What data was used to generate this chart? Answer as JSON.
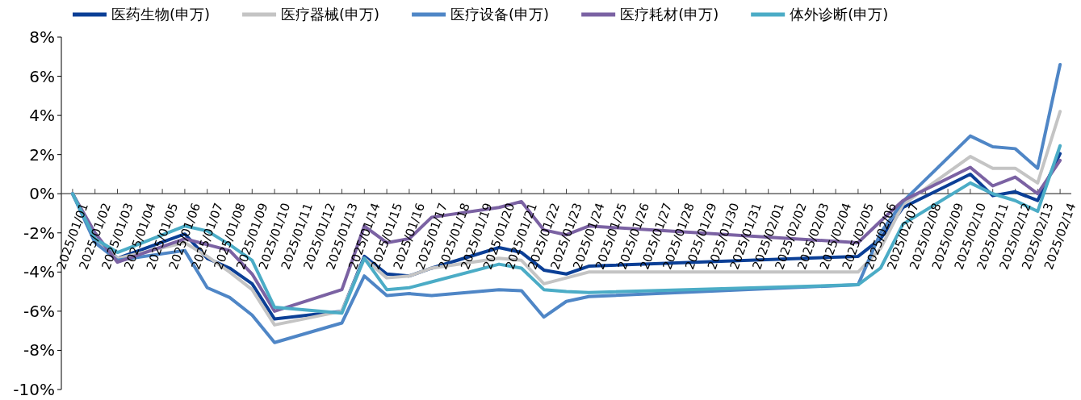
{
  "chart_data": {
    "type": "line",
    "x": [
      "2025-01-01",
      "2025-01-02",
      "2025-01-03",
      "2025-01-06",
      "2025-01-07",
      "2025-01-08",
      "2025-01-09",
      "2025-01-10",
      "2025-01-13",
      "2025-01-14",
      "2025-01-15",
      "2025-01-16",
      "2025-01-17",
      "2025-01-20",
      "2025-01-21",
      "2025-01-22",
      "2025-01-23",
      "2025-01-24",
      "2025-02-05",
      "2025-02-06",
      "2025-02-07",
      "2025-02-10",
      "2025-02-11",
      "2025-02-12",
      "2025-02-13",
      "2025-02-14"
    ],
    "series": [
      {
        "name": "医药生物(申万)",
        "color": "#0b3f96",
        "values": [
          0,
          -2.3,
          -3.3,
          -2.06,
          -3.3,
          -3.8,
          -4.6,
          -6.4,
          -6.0,
          -3.2,
          -4.1,
          -4.2,
          -3.8,
          -2.75,
          -3.0,
          -3.9,
          -4.1,
          -3.7,
          -3.2,
          -2.3,
          -0.7,
          1.0,
          -0.1,
          0.1,
          -0.35,
          2.05
        ]
      },
      {
        "name": "医疗器械(申万)",
        "color": "#c4c4c4",
        "values": [
          0,
          -2.4,
          -3.3,
          -2.5,
          -3.2,
          -4.0,
          -4.9,
          -6.7,
          -6.0,
          -3.3,
          -4.3,
          -4.2,
          -3.8,
          -3.3,
          -3.4,
          -4.6,
          -4.3,
          -4.0,
          -4.0,
          -2.8,
          -0.55,
          1.9,
          1.3,
          1.3,
          0.55,
          4.2
        ]
      },
      {
        "name": "医疗设备(申万)",
        "color": "#4f86c6",
        "values": [
          0,
          -2.5,
          -3.4,
          -2.9,
          -4.8,
          -5.3,
          -6.2,
          -7.6,
          -6.6,
          -4.2,
          -5.2,
          -5.1,
          -5.2,
          -4.9,
          -4.95,
          -6.3,
          -5.5,
          -5.25,
          -4.65,
          -2.0,
          -0.4,
          2.95,
          2.4,
          2.3,
          1.3,
          6.6
        ]
      },
      {
        "name": "医疗耗材(申万)",
        "color": "#7b62a3",
        "values": [
          0,
          -2.0,
          -3.5,
          -2.3,
          -2.6,
          -2.9,
          -4.1,
          -6.0,
          -4.9,
          -1.65,
          -2.5,
          -2.3,
          -1.2,
          -0.7,
          -0.4,
          -1.85,
          -2.1,
          -1.65,
          -2.5,
          -1.4,
          -0.35,
          1.35,
          0.4,
          0.85,
          0.0,
          1.7
        ]
      },
      {
        "name": "体外诊断(申万)",
        "color": "#4bacc6",
        "values": [
          0,
          -2.3,
          -3.0,
          -1.65,
          -1.9,
          -2.6,
          -3.4,
          -5.8,
          -6.1,
          -3.3,
          -4.9,
          -4.8,
          -4.5,
          -3.6,
          -3.8,
          -4.9,
          -5.0,
          -5.05,
          -4.65,
          -3.8,
          -1.55,
          0.55,
          0.0,
          -0.35,
          -0.9,
          2.45
        ]
      }
    ],
    "xlim": [
      "2024-12-31T12:00",
      "2025-02-14T12:00"
    ],
    "xticks": [
      {
        "value": "2025-01-01",
        "label": "2025/01/01"
      },
      {
        "value": "2025-01-02",
        "label": "2025/01/02"
      },
      {
        "value": "2025-01-03",
        "label": "2025/01/03"
      },
      {
        "value": "2025-01-04",
        "label": "2025/01/04"
      },
      {
        "value": "2025-01-05",
        "label": "2025/01/05"
      },
      {
        "value": "2025-01-06",
        "label": "2025/01/06"
      },
      {
        "value": "2025-01-07",
        "label": "2025/01/07"
      },
      {
        "value": "2025-01-08",
        "label": "2025/01/08"
      },
      {
        "value": "2025-01-09",
        "label": "2025/01/09"
      },
      {
        "value": "2025-01-10",
        "label": "2025/01/10"
      },
      {
        "value": "2025-01-11",
        "label": "2025/01/11"
      },
      {
        "value": "2025-01-12",
        "label": "2025/01/12"
      },
      {
        "value": "2025-01-13",
        "label": "2025/01/13"
      },
      {
        "value": "2025-01-14",
        "label": "2025/01/14"
      },
      {
        "value": "2025-01-15",
        "label": "2025/01/15"
      },
      {
        "value": "2025-01-16",
        "label": "2025/01/16"
      },
      {
        "value": "2025-01-17",
        "label": "2025/01/17"
      },
      {
        "value": "2025-01-18",
        "label": "2025/01/18"
      },
      {
        "value": "2025-01-19",
        "label": "2025/01/19"
      },
      {
        "value": "2025-01-20",
        "label": "2025/01/20"
      },
      {
        "value": "2025-01-21",
        "label": "2025/01/21"
      },
      {
        "value": "2025-01-22",
        "label": "2025/01/22"
      },
      {
        "value": "2025-01-23",
        "label": "2025/01/23"
      },
      {
        "value": "2025-01-24",
        "label": "2025/01/24"
      },
      {
        "value": "2025-01-25",
        "label": "2025/01/25"
      },
      {
        "value": "2025-01-26",
        "label": "2025/01/26"
      },
      {
        "value": "2025-01-27",
        "label": "2025/01/27"
      },
      {
        "value": "2025-01-28",
        "label": "2025/01/28"
      },
      {
        "value": "2025-01-29",
        "label": "2025/01/29"
      },
      {
        "value": "2025-01-30",
        "label": "2025/01/30"
      },
      {
        "value": "2025-01-31",
        "label": "2025/01/31"
      },
      {
        "value": "2025-02-01",
        "label": "2025/02/01"
      },
      {
        "value": "2025-02-02",
        "label": "2025/02/02"
      },
      {
        "value": "2025-02-03",
        "label": "2025/02/03"
      },
      {
        "value": "2025-02-04",
        "label": "2025/02/04"
      },
      {
        "value": "2025-02-05",
        "label": "2025/02/05"
      },
      {
        "value": "2025-02-06",
        "label": "2025/02/06"
      },
      {
        "value": "2025-02-07",
        "label": "2025/02/07"
      },
      {
        "value": "2025-02-08",
        "label": "2025/02/08"
      },
      {
        "value": "2025-02-09",
        "label": "2025/02/09"
      },
      {
        "value": "2025-02-10",
        "label": "2025/02/10"
      },
      {
        "value": "2025-02-11",
        "label": "2025/02/11"
      },
      {
        "value": "2025-02-12",
        "label": "2025/02/12"
      },
      {
        "value": "2025-02-13",
        "label": "2025/02/13"
      },
      {
        "value": "2025-02-14",
        "label": "2025/02/14"
      }
    ],
    "ylim": [
      -10,
      8
    ],
    "yticks": [
      {
        "value": 8,
        "label": "8%"
      },
      {
        "value": 6,
        "label": "6%"
      },
      {
        "value": 4,
        "label": "4%"
      },
      {
        "value": 2,
        "label": "2%"
      },
      {
        "value": 0,
        "label": "0%"
      },
      {
        "value": -2,
        "label": "-2%"
      },
      {
        "value": -4,
        "label": "-4%"
      },
      {
        "value": -6,
        "label": "-6%"
      },
      {
        "value": -8,
        "label": "-8%"
      },
      {
        "value": -10,
        "label": "-10%"
      }
    ],
    "grid": false,
    "legend": "top",
    "marker": "none",
    "line_style": "solid"
  }
}
